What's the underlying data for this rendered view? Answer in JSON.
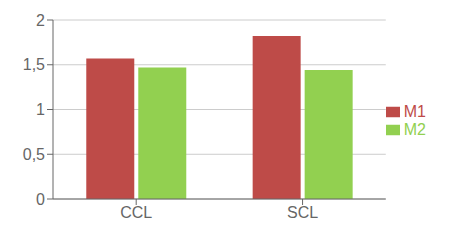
{
  "chart_data": {
    "type": "bar",
    "categories": [
      "CCL",
      "SCL"
    ],
    "series": [
      {
        "name": "M1",
        "color": "#be4b48",
        "values": [
          1.57,
          1.82
        ]
      },
      {
        "name": "M2",
        "color": "#92d050",
        "values": [
          1.47,
          1.44
        ]
      }
    ],
    "ylim": [
      0,
      2
    ],
    "yticks": [
      0,
      {
        "value": 0.5,
        "label": "0,5"
      },
      1,
      {
        "value": 1.5,
        "label": "1,5"
      },
      2
    ],
    "grid": true,
    "legend": "right"
  }
}
